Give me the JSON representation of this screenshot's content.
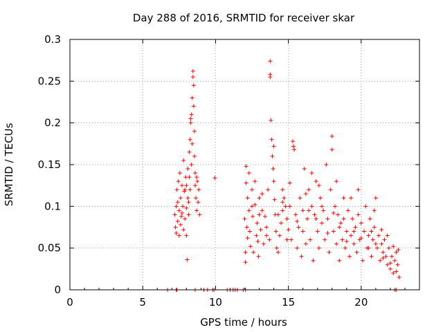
{
  "chart_data": {
    "type": "scatter",
    "title": "Day 288 of 2016, SRMTID for receiver skar",
    "xlabel": "GPS time / hours",
    "ylabel": "SRMTID / TECUs",
    "xlim": [
      0,
      24
    ],
    "ylim": [
      0,
      0.3
    ],
    "x_ticks": [
      0,
      5,
      10,
      15,
      20
    ],
    "x_tick_labels": [
      "0",
      "5",
      "10",
      "15",
      "20"
    ],
    "y_ticks": [
      0,
      0.05,
      0.1,
      0.15,
      0.2,
      0.25,
      0.3
    ],
    "y_tick_labels": [
      "0",
      "0.05",
      "0.1",
      "0.15",
      "0.2",
      "0.25",
      "0.3"
    ],
    "grid": true,
    "legend": "none",
    "marker": "+",
    "colors": {
      "series": "#ff0000",
      "grid": "#a0a0a0",
      "axis": "#000000"
    },
    "series": [
      {
        "name": "SRMTID",
        "points": [
          [
            6.7,
            0.0
          ],
          [
            7.3,
            0.0
          ],
          [
            7.35,
            0.0
          ],
          [
            8.6,
            0.0
          ],
          [
            9.2,
            0.0
          ],
          [
            9.45,
            0.0
          ],
          [
            9.8,
            0.0
          ],
          [
            9.9,
            0.0
          ],
          [
            10.8,
            0.0
          ],
          [
            11.0,
            0.0
          ],
          [
            11.2,
            0.0
          ],
          [
            11.35,
            0.0
          ],
          [
            11.5,
            0.0
          ],
          [
            11.9,
            0.0
          ],
          [
            12.05,
            0.0
          ],
          [
            22.3,
            0.0
          ],
          [
            22.4,
            0.0
          ],
          [
            7.2,
            0.09
          ],
          [
            7.25,
            0.075
          ],
          [
            7.3,
            0.068
          ],
          [
            7.3,
            0.1
          ],
          [
            7.35,
            0.12
          ],
          [
            7.4,
            0.082
          ],
          [
            7.45,
            0.13
          ],
          [
            7.5,
            0.095
          ],
          [
            7.5,
            0.065
          ],
          [
            7.55,
            0.14
          ],
          [
            7.6,
            0.11
          ],
          [
            7.6,
            0.078
          ],
          [
            7.65,
            0.088
          ],
          [
            7.7,
            0.125
          ],
          [
            7.75,
            0.1
          ],
          [
            7.8,
            0.072
          ],
          [
            7.8,
            0.155
          ],
          [
            7.85,
            0.118
          ],
          [
            7.9,
            0.085
          ],
          [
            7.95,
            0.135
          ],
          [
            8.0,
            0.098
          ],
          [
            8.0,
            0.065
          ],
          [
            8.05,
            0.036
          ],
          [
            8.1,
            0.11
          ],
          [
            8.1,
            0.145
          ],
          [
            8.15,
            0.09
          ],
          [
            8.2,
            0.135
          ],
          [
            8.2,
            0.165
          ],
          [
            8.25,
            0.12
          ],
          [
            8.25,
            0.18
          ],
          [
            8.3,
            0.2
          ],
          [
            8.3,
            0.205
          ],
          [
            8.35,
            0.15
          ],
          [
            8.35,
            0.21
          ],
          [
            8.4,
            0.175
          ],
          [
            8.4,
            0.23
          ],
          [
            8.45,
            0.262
          ],
          [
            8.45,
            0.255
          ],
          [
            8.5,
            0.245
          ],
          [
            8.5,
            0.22
          ],
          [
            8.55,
            0.19
          ],
          [
            8.55,
            0.16
          ],
          [
            8.6,
            0.14
          ],
          [
            8.6,
            0.125
          ],
          [
            8.65,
            0.11
          ],
          [
            8.7,
            0.095
          ],
          [
            8.75,
            0.13
          ],
          [
            8.8,
            0.105
          ],
          [
            8.85,
            0.12
          ],
          [
            8.9,
            0.09
          ],
          [
            7.4,
            0.105
          ],
          [
            7.7,
            0.092
          ],
          [
            7.9,
            0.12
          ],
          [
            8.0,
            0.125
          ],
          [
            8.15,
            0.105
          ],
          [
            8.7,
            0.135
          ],
          [
            9.95,
            0.134
          ],
          [
            12.0,
            0.085
          ],
          [
            12.05,
            0.045
          ],
          [
            12.05,
            0.033
          ],
          [
            12.1,
            0.148
          ],
          [
            12.1,
            0.128
          ],
          [
            12.15,
            0.075
          ],
          [
            12.2,
            0.11
          ],
          [
            12.2,
            0.062
          ],
          [
            12.3,
            0.095
          ],
          [
            12.35,
            0.07
          ],
          [
            12.4,
            0.052
          ],
          [
            12.5,
            0.12
          ],
          [
            12.55,
            0.088
          ],
          [
            12.6,
            0.045
          ],
          [
            12.7,
            0.102
          ],
          [
            12.8,
            0.065
          ],
          [
            12.85,
            0.08
          ],
          [
            12.95,
            0.04
          ],
          [
            13.0,
            0.11
          ],
          [
            13.1,
            0.072
          ],
          [
            13.2,
            0.095
          ],
          [
            13.3,
            0.055
          ],
          [
            13.4,
            0.088
          ],
          [
            13.5,
            0.065
          ],
          [
            13.6,
            0.12
          ],
          [
            13.7,
            0.06
          ],
          [
            13.75,
            0.274
          ],
          [
            13.75,
            0.258
          ],
          [
            13.75,
            0.255
          ],
          [
            13.8,
            0.203
          ],
          [
            13.85,
            0.18
          ],
          [
            13.9,
            0.16
          ],
          [
            13.95,
            0.145
          ],
          [
            14.0,
            0.13
          ],
          [
            14.0,
            0.172
          ],
          [
            14.05,
            0.108
          ],
          [
            14.1,
            0.09
          ],
          [
            14.15,
            0.07
          ],
          [
            14.2,
            0.05
          ],
          [
            14.3,
            0.045
          ],
          [
            14.4,
            0.065
          ],
          [
            14.5,
            0.08
          ],
          [
            14.6,
            0.095
          ],
          [
            14.7,
            0.11
          ],
          [
            14.8,
            0.1
          ],
          [
            14.9,
            0.085
          ],
          [
            15.0,
            0.072
          ],
          [
            15.1,
            0.128
          ],
          [
            15.2,
            0.06
          ],
          [
            15.3,
            0.178
          ],
          [
            15.35,
            0.172
          ],
          [
            15.4,
            0.168
          ],
          [
            15.5,
            0.09
          ],
          [
            15.6,
            0.05
          ],
          [
            15.7,
            0.075
          ],
          [
            15.8,
            0.11
          ],
          [
            15.9,
            0.04
          ],
          [
            16.0,
            0.095
          ],
          [
            16.1,
            0.145
          ],
          [
            16.2,
            0.055
          ],
          [
            16.3,
            0.085
          ],
          [
            16.4,
            0.12
          ],
          [
            16.5,
            0.06
          ],
          [
            16.6,
            0.1
          ],
          [
            16.7,
            0.035
          ],
          [
            16.8,
            0.09
          ],
          [
            16.9,
            0.13
          ],
          [
            17.0,
            0.07
          ],
          [
            17.1,
            0.05
          ],
          [
            17.2,
            0.11
          ],
          [
            17.3,
            0.08
          ],
          [
            17.4,
            0.095
          ],
          [
            17.5,
            0.06
          ],
          [
            17.6,
            0.15
          ],
          [
            17.7,
            0.085
          ],
          [
            17.8,
            0.045
          ],
          [
            17.9,
            0.12
          ],
          [
            18.0,
            0.184
          ],
          [
            18.0,
            0.168
          ],
          [
            18.1,
            0.07
          ],
          [
            18.2,
            0.1
          ],
          [
            18.3,
            0.055
          ],
          [
            18.4,
            0.09
          ],
          [
            18.5,
            0.035
          ],
          [
            18.6,
            0.08
          ],
          [
            18.7,
            0.06
          ],
          [
            18.8,
            0.11
          ],
          [
            18.9,
            0.05
          ],
          [
            19.0,
            0.07
          ],
          [
            19.1,
            0.095
          ],
          [
            19.2,
            0.04
          ],
          [
            19.3,
            0.065
          ],
          [
            19.4,
            0.085
          ],
          [
            19.5,
            0.055
          ],
          [
            19.6,
            0.075
          ],
          [
            19.7,
            0.045
          ],
          [
            19.8,
            0.12
          ],
          [
            19.9,
            0.06
          ],
          [
            20.0,
            0.08
          ],
          [
            20.1,
            0.035
          ],
          [
            20.2,
            0.07
          ],
          [
            20.3,
            0.1
          ],
          [
            20.4,
            0.05
          ],
          [
            20.5,
            0.065
          ],
          [
            20.6,
            0.085
          ],
          [
            20.7,
            0.04
          ],
          [
            20.8,
            0.06
          ],
          [
            20.9,
            0.075
          ],
          [
            21.0,
            0.11
          ],
          [
            21.1,
            0.05
          ],
          [
            21.2,
            0.065
          ],
          [
            21.3,
            0.035
          ],
          [
            21.4,
            0.055
          ],
          [
            21.5,
            0.045
          ],
          [
            21.6,
            0.06
          ],
          [
            21.7,
            0.04
          ],
          [
            21.8,
            0.03
          ],
          [
            21.9,
            0.05
          ],
          [
            22.0,
            0.025
          ],
          [
            22.1,
            0.04
          ],
          [
            22.2,
            0.02
          ],
          [
            22.3,
            0.035
          ],
          [
            22.4,
            0.045
          ],
          [
            22.5,
            0.03
          ],
          [
            22.55,
            0.048
          ],
          [
            22.6,
            0.015
          ],
          [
            12.5,
            0.1
          ],
          [
            12.9,
            0.058
          ],
          [
            13.2,
            0.115
          ],
          [
            13.5,
            0.075
          ],
          [
            14.3,
            0.09
          ],
          [
            14.6,
            0.105
          ],
          [
            14.9,
            0.06
          ],
          [
            15.1,
            0.1
          ],
          [
            15.6,
            0.082
          ],
          [
            16.0,
            0.07
          ],
          [
            16.4,
            0.095
          ],
          [
            16.9,
            0.085
          ],
          [
            17.3,
            0.1
          ],
          [
            17.7,
            0.068
          ],
          [
            18.1,
            0.092
          ],
          [
            18.5,
            0.075
          ],
          [
            19.0,
            0.058
          ],
          [
            19.5,
            0.07
          ],
          [
            20.0,
            0.062
          ],
          [
            20.5,
            0.05
          ],
          [
            21.0,
            0.055
          ],
          [
            21.5,
            0.038
          ],
          [
            22.0,
            0.032
          ],
          [
            22.4,
            0.022
          ],
          [
            14.6,
            0.12
          ],
          [
            16.6,
            0.14
          ],
          [
            18.3,
            0.13
          ],
          [
            19.3,
            0.11
          ],
          [
            20.9,
            0.095
          ],
          [
            21.4,
            0.072
          ],
          [
            12.3,
            0.14
          ],
          [
            12.7,
            0.13
          ],
          [
            13.0,
            0.09
          ],
          [
            16.2,
            0.115
          ],
          [
            17.1,
            0.125
          ],
          [
            18.8,
            0.085
          ],
          [
            19.8,
            0.09
          ],
          [
            20.7,
            0.07
          ],
          [
            21.8,
            0.065
          ],
          [
            22.2,
            0.052
          ]
        ]
      }
    ]
  }
}
